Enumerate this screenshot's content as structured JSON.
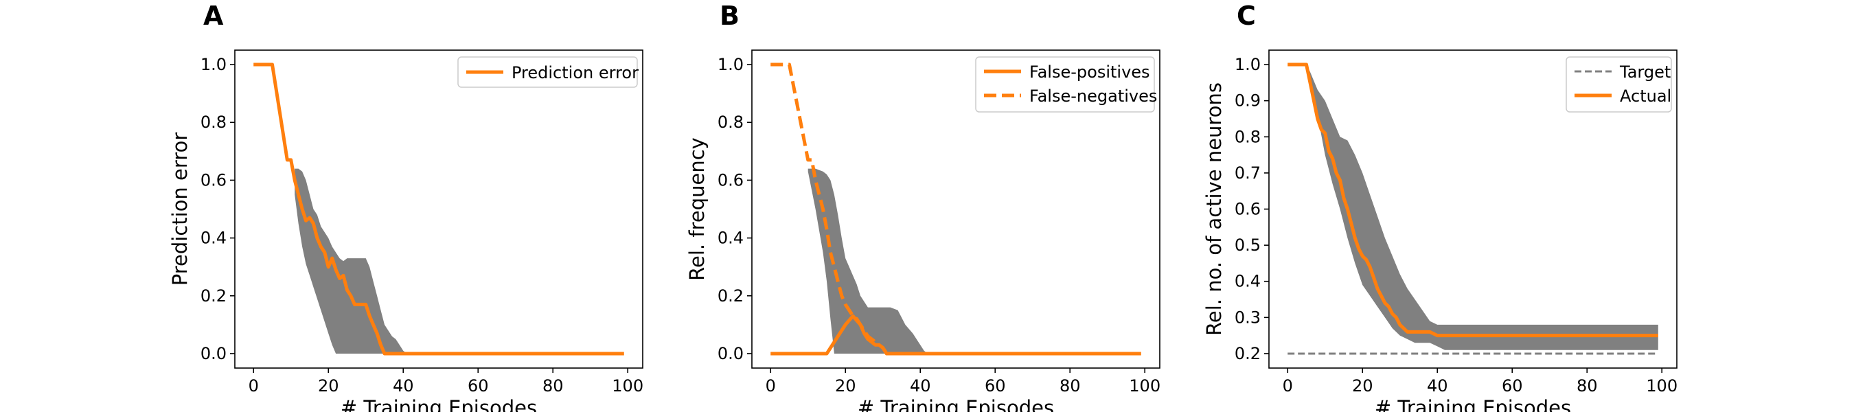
{
  "colors": {
    "accent": "#ff7f0e",
    "band": "#808080",
    "target": "#808080",
    "axis": "#000000"
  },
  "chart_data": [
    {
      "panel": "A",
      "type": "line",
      "xlabel": "# Training Episodes",
      "ylabel": "Prediction error",
      "xlim": [
        -5,
        104
      ],
      "ylim": [
        -0.05,
        1.05
      ],
      "xticks": [
        0,
        20,
        40,
        60,
        80,
        100
      ],
      "yticks": [
        0.0,
        0.2,
        0.4,
        0.6,
        0.8,
        1.0
      ],
      "ytick_labels": [
        "0.0",
        "0.2",
        "0.4",
        "0.6",
        "0.8",
        "1.0"
      ],
      "legend_position": "top-right",
      "series": [
        {
          "name": "Prediction error",
          "style": "solid",
          "x": [
            0,
            5,
            9,
            10,
            11,
            12,
            13,
            14,
            15,
            16,
            17,
            18,
            19,
            20,
            21,
            22,
            23,
            24,
            25,
            26,
            27,
            28,
            29,
            30,
            31,
            32,
            33,
            34,
            35,
            36,
            37,
            40,
            99
          ],
          "y": [
            1.0,
            1.0,
            0.67,
            0.67,
            0.6,
            0.55,
            0.5,
            0.46,
            0.47,
            0.45,
            0.4,
            0.37,
            0.35,
            0.3,
            0.33,
            0.29,
            0.26,
            0.27,
            0.22,
            0.2,
            0.17,
            0.17,
            0.17,
            0.17,
            0.13,
            0.1,
            0.07,
            0.03,
            0.0,
            0.0,
            0.0,
            0.0,
            0.0
          ]
        }
      ],
      "bands": [
        {
          "x": [
            11,
            12,
            13,
            14,
            15,
            16,
            17,
            18,
            19,
            20,
            21,
            22,
            23,
            24,
            25,
            26,
            27,
            28,
            29,
            30,
            31,
            32,
            33,
            34,
            35,
            36,
            37,
            38,
            39,
            40,
            41,
            42
          ],
          "upper": [
            0.64,
            0.64,
            0.63,
            0.6,
            0.55,
            0.5,
            0.48,
            0.44,
            0.42,
            0.4,
            0.37,
            0.35,
            0.33,
            0.32,
            0.33,
            0.33,
            0.33,
            0.33,
            0.33,
            0.33,
            0.3,
            0.25,
            0.2,
            0.15,
            0.1,
            0.08,
            0.06,
            0.05,
            0.03,
            0.01,
            0.0,
            0.0
          ],
          "lower": [
            0.55,
            0.45,
            0.37,
            0.31,
            0.27,
            0.23,
            0.19,
            0.15,
            0.11,
            0.07,
            0.03,
            0.0,
            0.0,
            0.0,
            0.0,
            0.0,
            0.0,
            0.0,
            0.0,
            0.0,
            0.0,
            0.0,
            0.0,
            0.0,
            0.0,
            0.0,
            0.0,
            0.0,
            0.0,
            0.0,
            0.0,
            0.0
          ]
        }
      ]
    },
    {
      "panel": "B",
      "type": "line",
      "xlabel": "# Training Episodes",
      "ylabel": "Rel. frequency",
      "xlim": [
        -5,
        104
      ],
      "ylim": [
        -0.05,
        1.05
      ],
      "xticks": [
        0,
        20,
        40,
        60,
        80,
        100
      ],
      "yticks": [
        0.0,
        0.2,
        0.4,
        0.6,
        0.8,
        1.0
      ],
      "ytick_labels": [
        "0.0",
        "0.2",
        "0.4",
        "0.6",
        "0.8",
        "1.0"
      ],
      "legend_position": "top-right",
      "series": [
        {
          "name": "False-positives",
          "style": "solid",
          "x": [
            0,
            15,
            20,
            22,
            24,
            25,
            26,
            27,
            28,
            29,
            30,
            31,
            99
          ],
          "y": [
            0.0,
            0.0,
            0.1,
            0.13,
            0.1,
            0.07,
            0.05,
            0.04,
            0.03,
            0.03,
            0.02,
            0.0,
            0.0
          ]
        },
        {
          "name": "False-negatives",
          "style": "dashed",
          "x": [
            0,
            5,
            10,
            11,
            12,
            13,
            14,
            15,
            16,
            17,
            18,
            19,
            20,
            21,
            22,
            23,
            24,
            25,
            26,
            27,
            28,
            29,
            30,
            31,
            99
          ],
          "y": [
            1.0,
            1.0,
            0.67,
            0.67,
            0.6,
            0.55,
            0.5,
            0.43,
            0.35,
            0.3,
            0.25,
            0.2,
            0.17,
            0.15,
            0.13,
            0.12,
            0.1,
            0.08,
            0.06,
            0.05,
            0.04,
            0.03,
            0.02,
            0.0,
            0.0
          ]
        }
      ],
      "bands": [
        {
          "x": [
            10,
            12,
            14,
            15,
            16,
            17,
            18,
            19,
            20,
            21,
            22,
            23,
            24,
            25,
            26,
            27,
            28,
            29,
            30,
            32,
            34,
            36,
            38,
            40,
            41,
            42
          ],
          "upper": [
            0.64,
            0.64,
            0.63,
            0.62,
            0.6,
            0.55,
            0.48,
            0.4,
            0.33,
            0.3,
            0.27,
            0.24,
            0.2,
            0.18,
            0.16,
            0.16,
            0.16,
            0.16,
            0.16,
            0.16,
            0.15,
            0.1,
            0.07,
            0.03,
            0.01,
            0.0
          ],
          "lower": [
            0.63,
            0.5,
            0.35,
            0.25,
            0.12,
            0.0,
            0.0,
            0.0,
            0.0,
            0.0,
            0.0,
            0.0,
            0.0,
            0.0,
            0.0,
            0.0,
            0.0,
            0.0,
            0.0,
            0.0,
            0.0,
            0.0,
            0.0,
            0.0,
            0.0,
            0.0
          ]
        }
      ]
    },
    {
      "panel": "C",
      "type": "line",
      "xlabel": "# Training Episodes",
      "ylabel": "Rel. no. of active neurons",
      "xlim": [
        -5,
        104
      ],
      "ylim": [
        0.16,
        1.04
      ],
      "xticks": [
        0,
        20,
        40,
        60,
        80,
        100
      ],
      "yticks": [
        0.2,
        0.3,
        0.4,
        0.5,
        0.6,
        0.7,
        0.8,
        0.9,
        1.0
      ],
      "ytick_labels": [
        "0.2",
        "0.3",
        "0.4",
        "0.5",
        "0.6",
        "0.7",
        "0.8",
        "0.9",
        "1.0"
      ],
      "legend_position": "top-right",
      "series": [
        {
          "name": "Target",
          "style": "dashed-gray",
          "x": [
            0,
            99
          ],
          "y": [
            0.2,
            0.2
          ]
        },
        {
          "name": "Actual",
          "style": "solid",
          "x": [
            0,
            5,
            7,
            8,
            9,
            10,
            11,
            12,
            13,
            14,
            15,
            16,
            17,
            18,
            19,
            20,
            21,
            22,
            23,
            24,
            25,
            26,
            27,
            28,
            29,
            30,
            31,
            32,
            33,
            35,
            38,
            40,
            45,
            99
          ],
          "y": [
            1.0,
            1.0,
            0.9,
            0.85,
            0.82,
            0.81,
            0.76,
            0.74,
            0.7,
            0.68,
            0.63,
            0.6,
            0.56,
            0.52,
            0.49,
            0.47,
            0.46,
            0.44,
            0.41,
            0.38,
            0.36,
            0.34,
            0.33,
            0.31,
            0.3,
            0.28,
            0.27,
            0.26,
            0.26,
            0.26,
            0.26,
            0.25,
            0.25,
            0.25
          ]
        }
      ],
      "bands": [
        {
          "x": [
            5,
            6,
            8,
            10,
            12,
            14,
            16,
            18,
            20,
            22,
            24,
            26,
            28,
            30,
            32,
            34,
            36,
            38,
            40,
            42,
            99
          ],
          "upper": [
            1.0,
            0.98,
            0.93,
            0.9,
            0.85,
            0.8,
            0.79,
            0.75,
            0.7,
            0.64,
            0.58,
            0.52,
            0.47,
            0.42,
            0.38,
            0.35,
            0.32,
            0.29,
            0.28,
            0.28,
            0.28
          ],
          "lower": [
            1.0,
            0.95,
            0.86,
            0.75,
            0.67,
            0.6,
            0.52,
            0.45,
            0.39,
            0.36,
            0.33,
            0.3,
            0.27,
            0.25,
            0.24,
            0.23,
            0.23,
            0.23,
            0.22,
            0.21,
            0.21
          ]
        }
      ]
    }
  ]
}
